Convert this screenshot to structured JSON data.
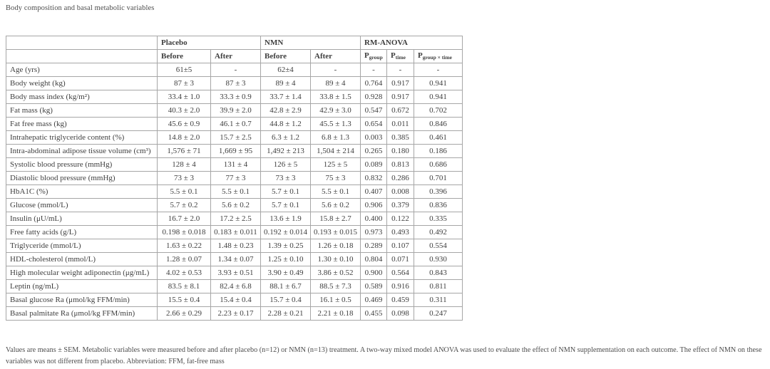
{
  "caption": "Body composition and basal metabolic variables",
  "colors": {
    "border": "#a6a6a6",
    "table_text": "#3e3e3e",
    "caption_text": "#4d4d4d",
    "background": "#ffffff"
  },
  "table": {
    "group_headers": [
      {
        "label": "",
        "colspan": 1
      },
      {
        "label": "Placebo",
        "colspan": 2
      },
      {
        "label": "NMN",
        "colspan": 2
      },
      {
        "label": "RM-ANOVA",
        "colspan": 3
      }
    ],
    "column_headers": [
      {
        "label": ""
      },
      {
        "label": "Before"
      },
      {
        "label": "After"
      },
      {
        "label": "Before"
      },
      {
        "label": "After"
      },
      {
        "label": "P",
        "subscript": "group"
      },
      {
        "label": "P",
        "subscript": "time"
      },
      {
        "label": "P",
        "subscript": "group × time"
      }
    ],
    "rows": [
      {
        "label": "Age (yrs)",
        "values": [
          "61±5",
          "-",
          "62±4",
          "-",
          "-",
          "-",
          "-"
        ]
      },
      {
        "label": "Body weight (kg)",
        "values": [
          "87 ± 3",
          "87 ± 3",
          "89 ± 4",
          "89 ± 4",
          "0.764",
          "0.917",
          "0.941"
        ]
      },
      {
        "label": "Body mass index (kg/m²)",
        "values": [
          "33.4 ± 1.0",
          "33.3 ± 0.9",
          "33.7 ± 1.4",
          "33.8 ± 1.5",
          "0.928",
          "0.917",
          "0.941"
        ]
      },
      {
        "label": "Fat mass (kg)",
        "values": [
          "40.3 ± 2.0",
          "39.9 ± 2.0",
          "42.8 ± 2.9",
          "42.9 ± 3.0",
          "0.547",
          "0.672",
          "0.702"
        ]
      },
      {
        "label": "Fat free mass (kg)",
        "values": [
          "45.6 ± 0.9",
          "46.1 ± 0.7",
          "44.8 ± 1.2",
          "45.5 ± 1.3",
          "0.654",
          "0.011",
          "0.846"
        ]
      },
      {
        "label": "Intrahepatic triglyceride content (%)",
        "values": [
          "14.8 ± 2.0",
          "15.7 ± 2.5",
          "6.3 ± 1.2",
          "6.8 ± 1.3",
          "0.003",
          "0.385",
          "0.461"
        ]
      },
      {
        "label": "Intra-abdominal adipose tissue volume (cm³)",
        "values": [
          "1,576 ± 71",
          "1,669 ± 95",
          "1,492 ± 213",
          "1,504 ± 214",
          "0.265",
          "0.180",
          "0.186"
        ]
      },
      {
        "label": "Systolic blood pressure (mmHg)",
        "values": [
          "128 ± 4",
          "131 ± 4",
          "126 ± 5",
          "125 ± 5",
          "0.089",
          "0.813",
          "0.686"
        ]
      },
      {
        "label": "Diastolic blood pressure (mmHg)",
        "values": [
          "73 ± 3",
          "77 ± 3",
          "73 ± 3",
          "75 ± 3",
          "0.832",
          "0.286",
          "0.701"
        ]
      },
      {
        "label": "HbA1C (%)",
        "values": [
          "5.5 ± 0.1",
          "5.5 ± 0.1",
          "5.7 ± 0.1",
          "5.5 ± 0.1",
          "0.407",
          "0.008",
          "0.396"
        ]
      },
      {
        "label": "Glucose (mmol/L)",
        "values": [
          "5.7 ± 0.2",
          "5.6 ± 0.2",
          "5.7 ± 0.1",
          "5.6 ± 0.2",
          "0.906",
          "0.379",
          "0.836"
        ]
      },
      {
        "label": "Insulin (μU/mL)",
        "values": [
          "16.7 ± 2.0",
          "17.2 ± 2.5",
          "13.6 ± 1.9",
          "15.8 ± 2.7",
          "0.400",
          "0.122",
          "0.335"
        ]
      },
      {
        "label": "Free fatty acids (g/L)",
        "values": [
          "0.198 ± 0.018",
          "0.183 ± 0.011",
          "0.192 ± 0.014",
          "0.193 ± 0.015",
          "0.973",
          "0.493",
          "0.492"
        ]
      },
      {
        "label": "Triglyceride (mmol/L)",
        "values": [
          "1.63 ± 0.22",
          "1.48 ± 0.23",
          "1.39 ± 0.25",
          "1.26 ± 0.18",
          "0.289",
          "0.107",
          "0.554"
        ]
      },
      {
        "label": "HDL-cholesterol (mmol/L)",
        "values": [
          "1.28 ± 0.07",
          "1.34 ± 0.07",
          "1.25 ± 0.10",
          "1.30 ± 0.10",
          "0.804",
          "0.071",
          "0.930"
        ]
      },
      {
        "label": "High molecular weight adiponectin (μg/mL)",
        "values": [
          "4.02 ± 0.53",
          "3.93 ± 0.51",
          "3.90 ± 0.49",
          "3.86 ± 0.52",
          "0.900",
          "0.564",
          "0.843"
        ]
      },
      {
        "label": "Leptin (ng/mL)",
        "values": [
          "83.5 ± 8.1",
          "82.4 ± 6.8",
          "88.1 ± 6.7",
          "88.5 ± 7.3",
          "0.589",
          "0.916",
          "0.811"
        ]
      },
      {
        "label": "Basal glucose Ra (μmol/kg FFM/min)",
        "values": [
          "15.5 ± 0.4",
          "15.4 ± 0.4",
          "15.7 ± 0.4",
          "16.1 ± 0.5",
          "0.469",
          "0.459",
          "0.311"
        ]
      },
      {
        "label": "Basal palmitate Ra (μmol/kg FFM/min)",
        "values": [
          "2.66 ± 0.29",
          "2.23 ± 0.17",
          "2.28 ± 0.21",
          "2.21 ± 0.18",
          "0.455",
          "0.098",
          "0.247"
        ]
      }
    ]
  },
  "footnote": "Values are means ± SEM. Metabolic variables were measured before and after placebo (n=12) or NMN (n=13) treatment. A two-way mixed model ANOVA was used to evaluate the effect of NMN supplementation on each outcome. The effect of NMN on these variables was not different from placebo. Abbreviation: FFM, fat-free mass"
}
